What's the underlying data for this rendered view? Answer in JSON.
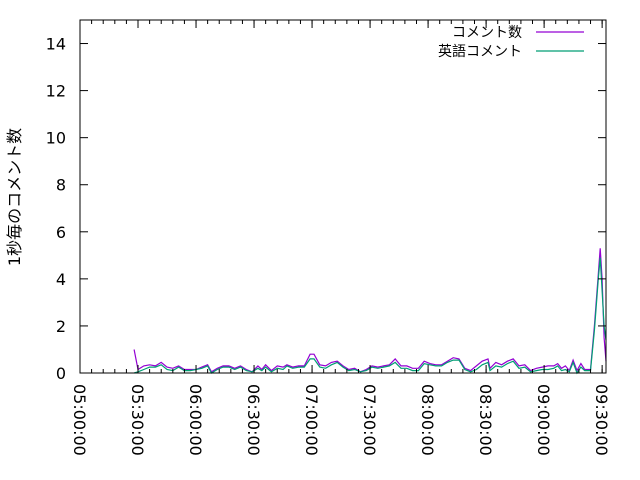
{
  "chart_data": {
    "type": "line",
    "title": "",
    "xlabel": "",
    "ylabel": "1秒毎のコメント数",
    "xlim": [
      "05:00:00",
      "09:32:00"
    ],
    "ylim": [
      0,
      15
    ],
    "x_ticks": [
      "05:00:00",
      "05:30:00",
      "06:00:00",
      "06:30:00",
      "07:00:00",
      "07:30:00",
      "08:00:00",
      "08:30:00",
      "09:00:00",
      "09:30:00"
    ],
    "y_ticks": [
      "0",
      "2",
      "4",
      "6",
      "8",
      "10",
      "12",
      "14"
    ],
    "grid": false,
    "legend_position": "top-right",
    "series": [
      {
        "name": "コメント数",
        "color": "#9400d3",
        "points": [
          [
            "05:28",
            1.0
          ],
          [
            "05:30",
            0.15
          ],
          [
            "05:33",
            0.3
          ],
          [
            "05:36",
            0.35
          ],
          [
            "05:39",
            0.3
          ],
          [
            "05:42",
            0.45
          ],
          [
            "05:45",
            0.25
          ],
          [
            "05:48",
            0.2
          ],
          [
            "05:51",
            0.3
          ],
          [
            "05:54",
            0.15
          ],
          [
            "05:57",
            0.15
          ],
          [
            "06:00",
            0.15
          ],
          [
            "06:03",
            0.25
          ],
          [
            "06:06",
            0.35
          ],
          [
            "06:08",
            0.05
          ],
          [
            "06:11",
            0.2
          ],
          [
            "06:14",
            0.3
          ],
          [
            "06:17",
            0.3
          ],
          [
            "06:20",
            0.2
          ],
          [
            "06:23",
            0.3
          ],
          [
            "06:26",
            0.15
          ],
          [
            "06:29",
            0.05
          ],
          [
            "06:32",
            0.3
          ],
          [
            "06:34",
            0.15
          ],
          [
            "06:36",
            0.35
          ],
          [
            "06:39",
            0.1
          ],
          [
            "06:42",
            0.3
          ],
          [
            "06:45",
            0.25
          ],
          [
            "06:47",
            0.35
          ],
          [
            "06:50",
            0.25
          ],
          [
            "06:53",
            0.3
          ],
          [
            "06:56",
            0.3
          ],
          [
            "06:59",
            0.8
          ],
          [
            "07:01",
            0.8
          ],
          [
            "07:04",
            0.35
          ],
          [
            "07:07",
            0.3
          ],
          [
            "07:10",
            0.45
          ],
          [
            "07:13",
            0.5
          ],
          [
            "07:16",
            0.3
          ],
          [
            "07:19",
            0.15
          ],
          [
            "07:22",
            0.2
          ],
          [
            "07:25",
            0.05
          ],
          [
            "07:28",
            0.15
          ],
          [
            "07:31",
            0.3
          ],
          [
            "07:34",
            0.25
          ],
          [
            "07:37",
            0.3
          ],
          [
            "07:40",
            0.35
          ],
          [
            "07:43",
            0.6
          ],
          [
            "07:46",
            0.3
          ],
          [
            "07:49",
            0.3
          ],
          [
            "07:52",
            0.2
          ],
          [
            "07:55",
            0.2
          ],
          [
            "07:58",
            0.5
          ],
          [
            "08:01",
            0.4
          ],
          [
            "08:04",
            0.35
          ],
          [
            "08:07",
            0.35
          ],
          [
            "08:10",
            0.5
          ],
          [
            "08:13",
            0.65
          ],
          [
            "08:16",
            0.6
          ],
          [
            "08:19",
            0.2
          ],
          [
            "08:22",
            0.1
          ],
          [
            "08:25",
            0.3
          ],
          [
            "08:28",
            0.5
          ],
          [
            "08:31",
            0.6
          ],
          [
            "08:32",
            0.2
          ],
          [
            "08:35",
            0.45
          ],
          [
            "08:38",
            0.35
          ],
          [
            "08:41",
            0.5
          ],
          [
            "08:44",
            0.6
          ],
          [
            "08:47",
            0.3
          ],
          [
            "08:50",
            0.35
          ],
          [
            "08:53",
            0.1
          ],
          [
            "08:56",
            0.2
          ],
          [
            "08:59",
            0.25
          ],
          [
            "09:02",
            0.3
          ],
          [
            "09:05",
            0.3
          ],
          [
            "09:07",
            0.4
          ],
          [
            "09:09",
            0.2
          ],
          [
            "09:11",
            0.3
          ],
          [
            "09:13",
            0.1
          ],
          [
            "09:15",
            0.55
          ],
          [
            "09:17",
            0.1
          ],
          [
            "09:19",
            0.4
          ],
          [
            "09:21",
            0.15
          ],
          [
            "09:24",
            0.15
          ],
          [
            "09:26",
            2.0
          ],
          [
            "09:28",
            4.2
          ],
          [
            "09:29",
            5.3
          ],
          [
            "09:30",
            4.0
          ],
          [
            "09:31",
            1.5
          ],
          [
            "09:32",
            0.5
          ]
        ]
      },
      {
        "name": "英語コメント",
        "color": "#009e73",
        "points": [
          [
            "05:28",
            0.0
          ],
          [
            "05:30",
            0.05
          ],
          [
            "05:33",
            0.15
          ],
          [
            "05:36",
            0.25
          ],
          [
            "05:39",
            0.25
          ],
          [
            "05:42",
            0.35
          ],
          [
            "05:45",
            0.15
          ],
          [
            "05:48",
            0.1
          ],
          [
            "05:51",
            0.25
          ],
          [
            "05:54",
            0.1
          ],
          [
            "05:57",
            0.1
          ],
          [
            "06:00",
            0.15
          ],
          [
            "06:03",
            0.2
          ],
          [
            "06:06",
            0.3
          ],
          [
            "06:08",
            0.0
          ],
          [
            "06:11",
            0.15
          ],
          [
            "06:14",
            0.25
          ],
          [
            "06:17",
            0.25
          ],
          [
            "06:20",
            0.15
          ],
          [
            "06:23",
            0.25
          ],
          [
            "06:26",
            0.1
          ],
          [
            "06:29",
            0.05
          ],
          [
            "06:32",
            0.2
          ],
          [
            "06:34",
            0.1
          ],
          [
            "06:36",
            0.25
          ],
          [
            "06:39",
            0.05
          ],
          [
            "06:42",
            0.2
          ],
          [
            "06:45",
            0.15
          ],
          [
            "06:47",
            0.3
          ],
          [
            "06:50",
            0.2
          ],
          [
            "06:53",
            0.25
          ],
          [
            "06:56",
            0.25
          ],
          [
            "06:59",
            0.6
          ],
          [
            "07:01",
            0.6
          ],
          [
            "07:04",
            0.25
          ],
          [
            "07:07",
            0.2
          ],
          [
            "07:10",
            0.35
          ],
          [
            "07:13",
            0.45
          ],
          [
            "07:16",
            0.25
          ],
          [
            "07:19",
            0.1
          ],
          [
            "07:22",
            0.15
          ],
          [
            "07:25",
            0.05
          ],
          [
            "07:28",
            0.1
          ],
          [
            "07:31",
            0.25
          ],
          [
            "07:34",
            0.2
          ],
          [
            "07:37",
            0.25
          ],
          [
            "07:40",
            0.3
          ],
          [
            "07:43",
            0.45
          ],
          [
            "07:46",
            0.2
          ],
          [
            "07:49",
            0.2
          ],
          [
            "07:52",
            0.1
          ],
          [
            "07:55",
            0.1
          ],
          [
            "07:58",
            0.4
          ],
          [
            "08:01",
            0.35
          ],
          [
            "08:04",
            0.3
          ],
          [
            "08:07",
            0.3
          ],
          [
            "08:10",
            0.45
          ],
          [
            "08:13",
            0.55
          ],
          [
            "08:16",
            0.55
          ],
          [
            "08:19",
            0.15
          ],
          [
            "08:22",
            0.05
          ],
          [
            "08:25",
            0.15
          ],
          [
            "08:28",
            0.35
          ],
          [
            "08:31",
            0.45
          ],
          [
            "08:32",
            0.1
          ],
          [
            "08:35",
            0.3
          ],
          [
            "08:38",
            0.25
          ],
          [
            "08:41",
            0.4
          ],
          [
            "08:44",
            0.5
          ],
          [
            "08:47",
            0.2
          ],
          [
            "08:50",
            0.25
          ],
          [
            "08:53",
            0.05
          ],
          [
            "08:56",
            0.1
          ],
          [
            "08:59",
            0.15
          ],
          [
            "09:02",
            0.15
          ],
          [
            "09:05",
            0.2
          ],
          [
            "09:07",
            0.3
          ],
          [
            "09:09",
            0.1
          ],
          [
            "09:11",
            0.15
          ],
          [
            "09:13",
            0.05
          ],
          [
            "09:15",
            0.45
          ],
          [
            "09:17",
            0.0
          ],
          [
            "09:19",
            0.25
          ],
          [
            "09:21",
            0.1
          ],
          [
            "09:24",
            0.1
          ],
          [
            "09:26",
            1.8
          ],
          [
            "09:28",
            4.0
          ],
          [
            "09:29",
            4.9
          ],
          [
            "09:30",
            3.5
          ],
          [
            "09:31",
            2.0
          ],
          [
            "09:32",
            1.4
          ]
        ]
      }
    ]
  }
}
